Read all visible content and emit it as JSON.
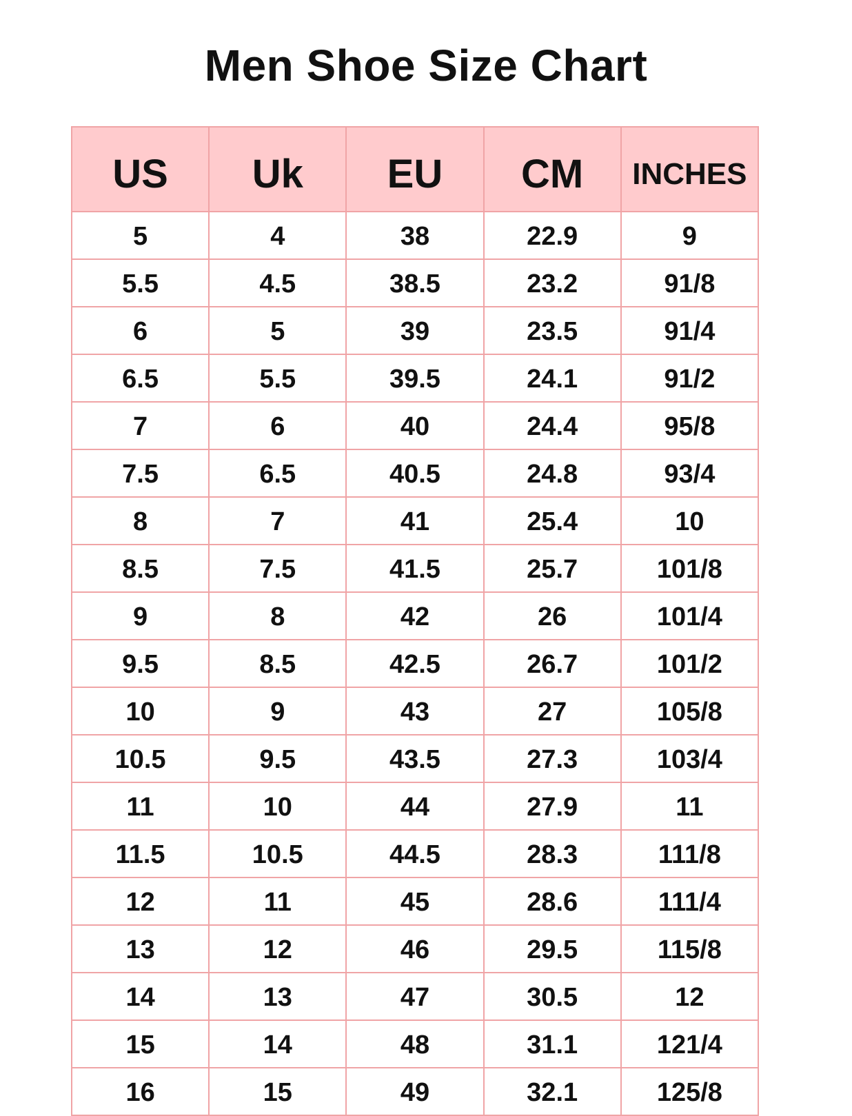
{
  "chart_data": {
    "type": "table",
    "title": "Men Shoe Size Chart",
    "columns": [
      "US",
      "Uk",
      "EU",
      "CM",
      "INCHES"
    ],
    "rows": [
      [
        "5",
        "4",
        "38",
        "22.9",
        "9"
      ],
      [
        "5.5",
        "4.5",
        "38.5",
        "23.2",
        "91/8"
      ],
      [
        "6",
        "5",
        "39",
        "23.5",
        "91/4"
      ],
      [
        "6.5",
        "5.5",
        "39.5",
        "24.1",
        "91/2"
      ],
      [
        "7",
        "6",
        "40",
        "24.4",
        "95/8"
      ],
      [
        "7.5",
        "6.5",
        "40.5",
        "24.8",
        "93/4"
      ],
      [
        "8",
        "7",
        "41",
        "25.4",
        "10"
      ],
      [
        "8.5",
        "7.5",
        "41.5",
        "25.7",
        "101/8"
      ],
      [
        "9",
        "8",
        "42",
        "26",
        "101/4"
      ],
      [
        "9.5",
        "8.5",
        "42.5",
        "26.7",
        "101/2"
      ],
      [
        "10",
        "9",
        "43",
        "27",
        "105/8"
      ],
      [
        "10.5",
        "9.5",
        "43.5",
        "27.3",
        "103/4"
      ],
      [
        "11",
        "10",
        "44",
        "27.9",
        "11"
      ],
      [
        "11.5",
        "10.5",
        "44.5",
        "28.3",
        "111/8"
      ],
      [
        "12",
        "11",
        "45",
        "28.6",
        "111/4"
      ],
      [
        "13",
        "12",
        "46",
        "29.5",
        "115/8"
      ],
      [
        "14",
        "13",
        "47",
        "30.5",
        "12"
      ],
      [
        "15",
        "14",
        "48",
        "31.1",
        "121/4"
      ],
      [
        "16",
        "15",
        "49",
        "32.1",
        "125/8"
      ]
    ],
    "colors": {
      "header_bg": "#ffcbcd",
      "border": "#f0a4a6"
    }
  }
}
